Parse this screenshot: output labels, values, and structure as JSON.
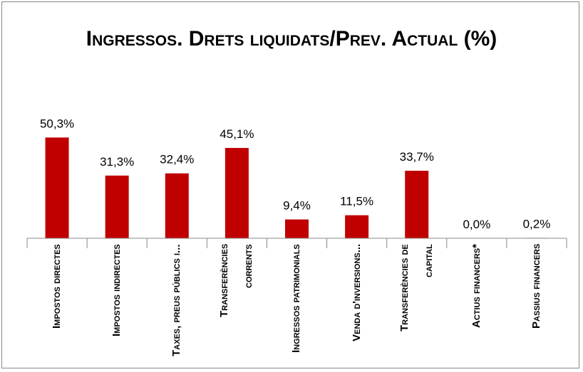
{
  "chart_data": {
    "type": "bar",
    "title": "Ingressos. Drets liquidats/Prev. Actual (%)",
    "categories": [
      "Impostos directes",
      "Impostos indirectes",
      "Taxes, preus públics i...",
      "Transferències corrents",
      "Ingressos patrimonials",
      "Venda d'inversions...",
      "Transferències de capital",
      "Actius financers*",
      "Passius financers"
    ],
    "values": [
      50.3,
      31.3,
      32.4,
      45.1,
      9.4,
      11.5,
      33.7,
      0.0,
      0.2
    ],
    "value_labels": [
      "50,3%",
      "31,3%",
      "32,4%",
      "45,1%",
      "9,4%",
      "11,5%",
      "33,7%",
      "0,0%",
      "0,2%"
    ],
    "color": "#c00000",
    "ylim": [
      0,
      60
    ]
  }
}
